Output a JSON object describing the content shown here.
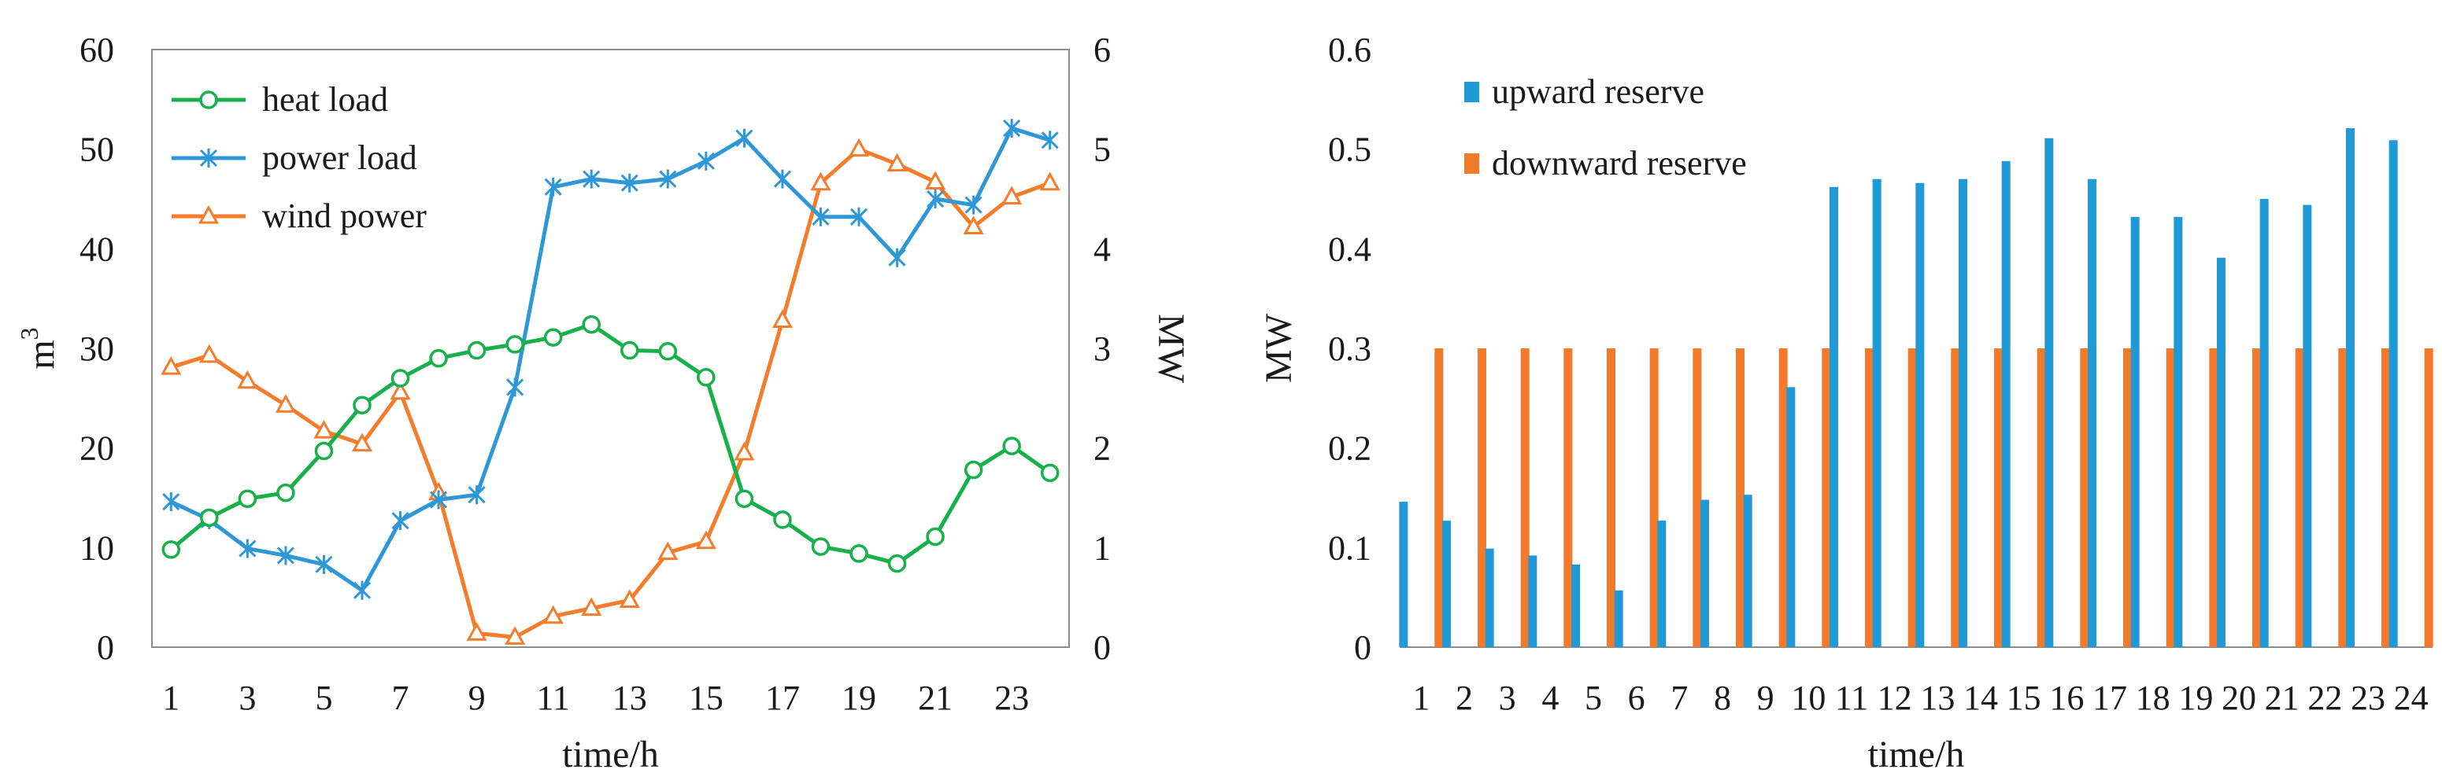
{
  "chart_data": [
    {
      "type": "line",
      "xlabel": "time/h",
      "ylabel_left": "m",
      "ylabel_left_sup": "3",
      "ylabel_right": "MW",
      "ylim_left": [
        0,
        60
      ],
      "ylim_right": [
        0,
        6
      ],
      "yticks_left": [
        "0",
        "10",
        "20",
        "30",
        "40",
        "50",
        "60"
      ],
      "yticks_right": [
        "0",
        "1",
        "2",
        "3",
        "4",
        "5",
        "6"
      ],
      "xticks": [
        "1",
        "3",
        "5",
        "7",
        "9",
        "11",
        "13",
        "15",
        "17",
        "19",
        "21",
        "23"
      ],
      "x": [
        1,
        2,
        3,
        4,
        5,
        6,
        7,
        8,
        9,
        10,
        11,
        12,
        13,
        14,
        15,
        16,
        17,
        18,
        19,
        20,
        21,
        22,
        23,
        24
      ],
      "legend_position": "top-left",
      "series": [
        {
          "name": "heat load",
          "axis": "left",
          "marker": "circle",
          "color": "#16b14a",
          "values": [
            9.8,
            13.0,
            14.9,
            15.5,
            19.7,
            24.3,
            27.0,
            29.0,
            29.8,
            30.4,
            31.1,
            32.4,
            29.8,
            29.7,
            27.1,
            14.9,
            12.8,
            10.1,
            9.4,
            8.4,
            11.1,
            17.8,
            20.2,
            17.5
          ]
        },
        {
          "name": "power load",
          "axis": "right",
          "marker": "star",
          "color": "#2e98d6",
          "values": [
            1.46,
            1.28,
            0.99,
            0.92,
            0.83,
            0.57,
            1.27,
            1.48,
            1.53,
            2.61,
            4.62,
            4.7,
            4.66,
            4.7,
            4.88,
            5.11,
            4.7,
            4.32,
            4.32,
            3.91,
            4.5,
            4.44,
            5.21,
            5.09
          ]
        },
        {
          "name": "wind power",
          "axis": "right",
          "marker": "triangle",
          "color": "#f47c2a",
          "values": [
            2.81,
            2.93,
            2.67,
            2.43,
            2.17,
            2.04,
            2.56,
            1.55,
            0.14,
            0.1,
            0.31,
            0.39,
            0.47,
            0.95,
            1.06,
            1.95,
            3.28,
            4.66,
            5.0,
            4.85,
            4.67,
            4.22,
            4.52,
            4.66
          ]
        }
      ]
    },
    {
      "type": "bar",
      "xlabel": "time/h",
      "ylabel": "MW",
      "ylim": [
        0,
        0.6
      ],
      "yticks": [
        "0",
        "0.1",
        "0.2",
        "0.3",
        "0.4",
        "0.5",
        "0.6"
      ],
      "categories": [
        "1",
        "2",
        "3",
        "4",
        "5",
        "6",
        "7",
        "8",
        "9",
        "10",
        "11",
        "12",
        "13",
        "14",
        "15",
        "16",
        "17",
        "18",
        "19",
        "20",
        "21",
        "22",
        "23",
        "24"
      ],
      "legend_position": "top-left",
      "series": [
        {
          "name": "upward reserve",
          "color": "#1f9ad6",
          "values": [
            0.146,
            0.127,
            0.099,
            0.092,
            0.083,
            0.057,
            0.127,
            0.148,
            0.153,
            0.261,
            0.462,
            0.47,
            0.466,
            0.47,
            0.488,
            0.511,
            0.47,
            0.432,
            0.432,
            0.391,
            0.45,
            0.444,
            0.521,
            0.509
          ]
        },
        {
          "name": "downward reserve",
          "color": "#f47a2b",
          "values": [
            0.3,
            0.3,
            0.3,
            0.3,
            0.3,
            0.3,
            0.3,
            0.3,
            0.3,
            0.3,
            0.3,
            0.3,
            0.3,
            0.3,
            0.3,
            0.3,
            0.3,
            0.3,
            0.3,
            0.3,
            0.3,
            0.3,
            0.3,
            0.3
          ]
        }
      ]
    }
  ]
}
